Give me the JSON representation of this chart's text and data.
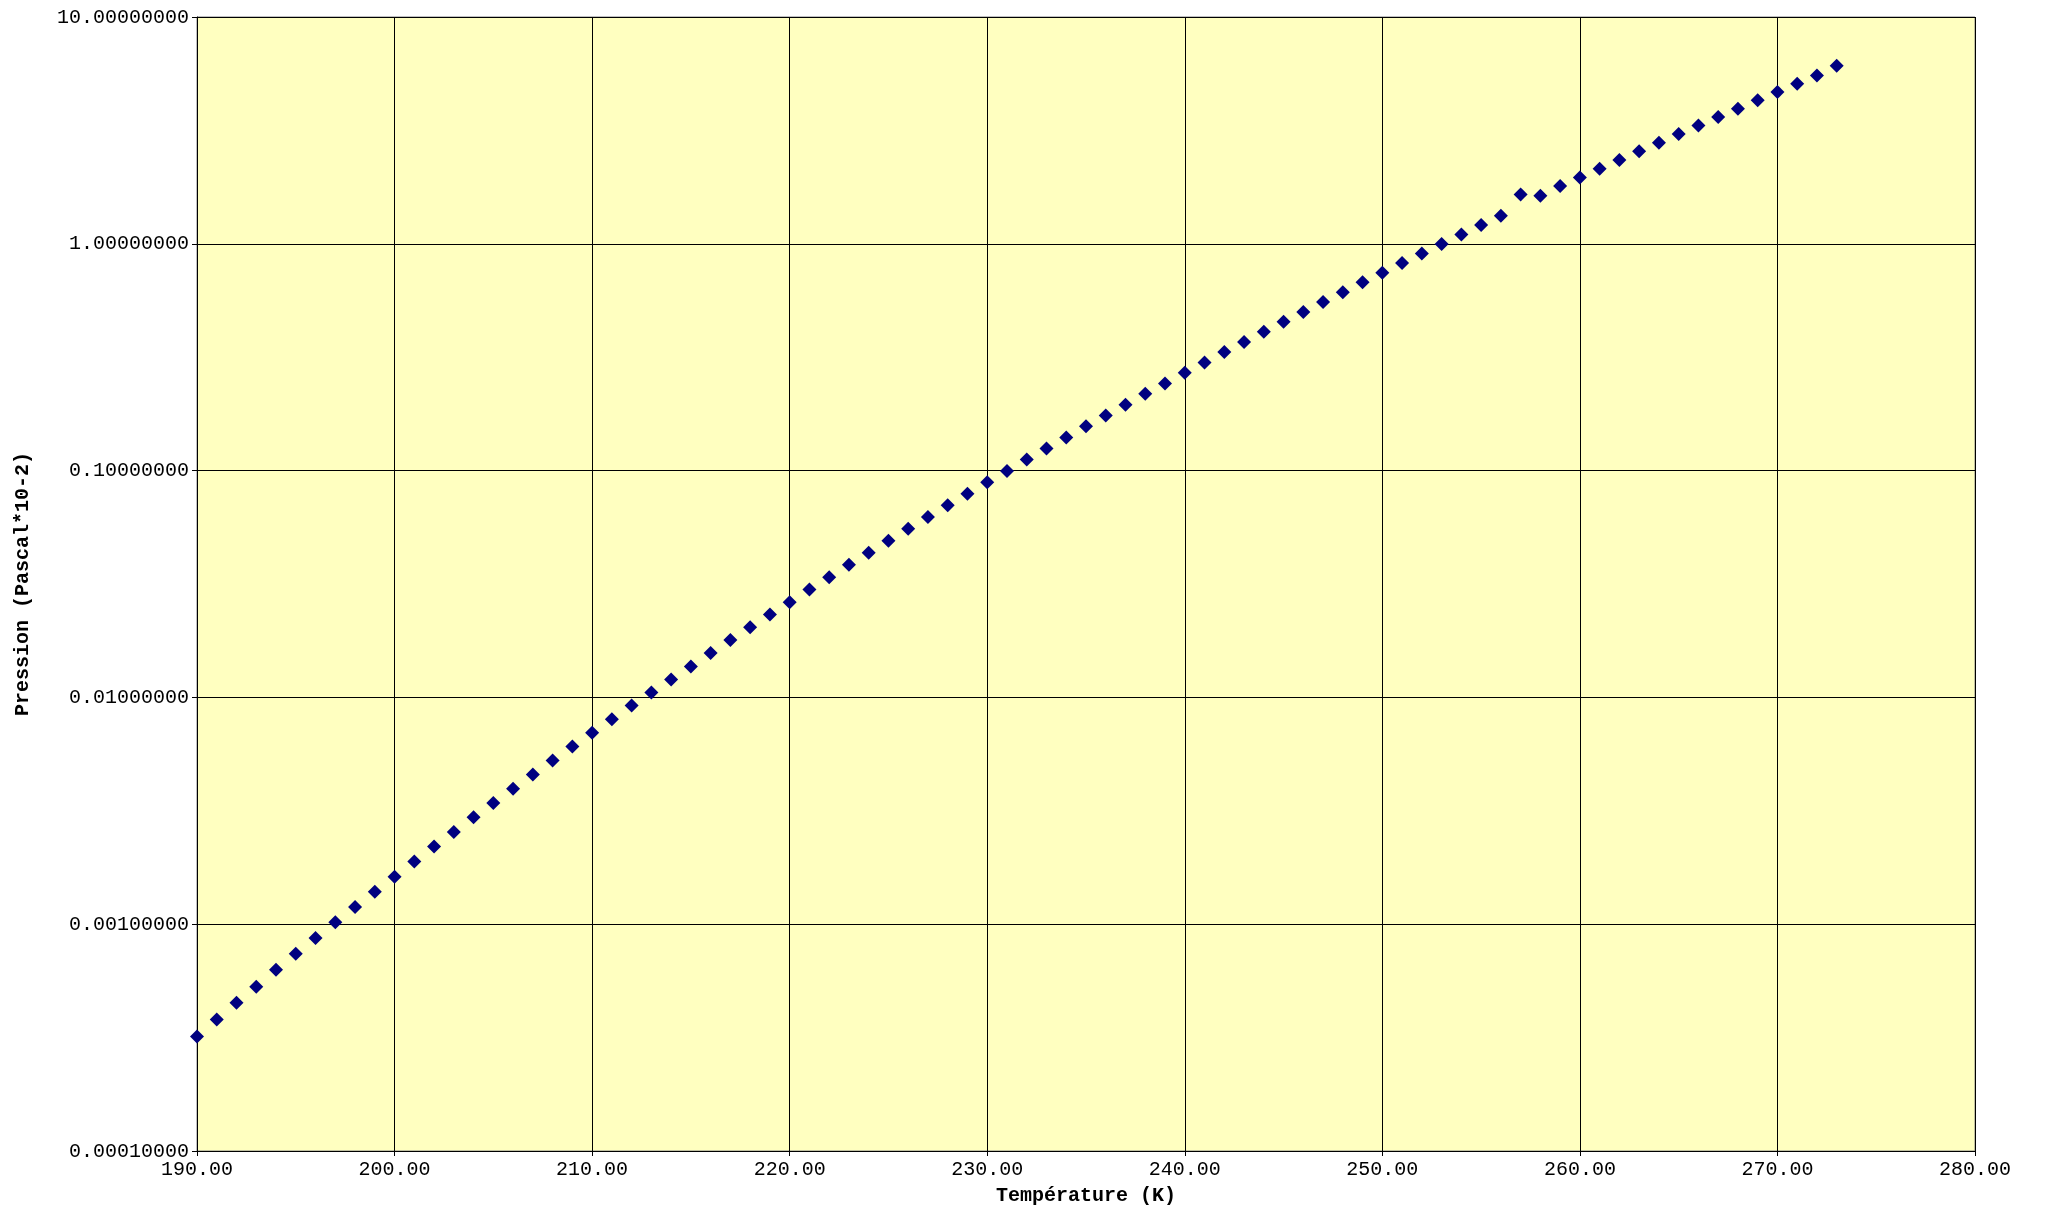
{
  "chart_data": {
    "type": "scatter",
    "xlabel": "Température (K)",
    "ylabel": "Pression (Pascal*10-2)",
    "log": "y",
    "grid": true,
    "marker": "diamond",
    "xlim": [
      190,
      280
    ],
    "ylim": [
      0.0001,
      10
    ],
    "xticks": [
      {
        "value": 190,
        "label": "190.00"
      },
      {
        "value": 200,
        "label": "200.00"
      },
      {
        "value": 210,
        "label": "210.00"
      },
      {
        "value": 220,
        "label": "220.00"
      },
      {
        "value": 230,
        "label": "230.00"
      },
      {
        "value": 240,
        "label": "240.00"
      },
      {
        "value": 250,
        "label": "250.00"
      },
      {
        "value": 260,
        "label": "260.00"
      },
      {
        "value": 270,
        "label": "270.00"
      },
      {
        "value": 280,
        "label": "280.00"
      }
    ],
    "yticks": [
      {
        "value": 0.0001,
        "label": "0.00010000"
      },
      {
        "value": 0.001,
        "label": "0.00100000"
      },
      {
        "value": 0.01,
        "label": "0.01000000"
      },
      {
        "value": 0.1,
        "label": "0.10000000"
      },
      {
        "value": 1,
        "label": "1.00000000"
      },
      {
        "value": 10,
        "label": "10.00000000"
      }
    ],
    "x": [
      190,
      191,
      192,
      193,
      194,
      195,
      196,
      197,
      198,
      199,
      200,
      201,
      202,
      203,
      204,
      205,
      206,
      207,
      208,
      209,
      210,
      211,
      212,
      213,
      214,
      215,
      216,
      217,
      218,
      219,
      220,
      221,
      222,
      223,
      224,
      225,
      226,
      227,
      228,
      229,
      230,
      231,
      232,
      233,
      234,
      235,
      236,
      237,
      238,
      239,
      240,
      241,
      242,
      243,
      244,
      245,
      246,
      247,
      248,
      249,
      250,
      251,
      252,
      253,
      254,
      255,
      256,
      257,
      258,
      259,
      260,
      261,
      262,
      263,
      264,
      265,
      266,
      267,
      268,
      269,
      270,
      271,
      272,
      273
    ],
    "series": [
      {
        "color": "#000080",
        "values": [
          0.00032,
          0.00038,
          0.00045,
          0.00053,
          0.00063,
          0.00074,
          0.00087,
          0.00102,
          0.00119,
          0.00139,
          0.00162,
          0.00189,
          0.0022,
          0.00255,
          0.00296,
          0.00342,
          0.00396,
          0.00457,
          0.00527,
          0.00607,
          0.00698,
          0.00802,
          0.0092,
          0.0105,
          0.012,
          0.0137,
          0.0157,
          0.0179,
          0.0204,
          0.0232,
          0.0263,
          0.0299,
          0.0339,
          0.0384,
          0.0434,
          0.0491,
          0.0554,
          0.0624,
          0.0703,
          0.079,
          0.0888,
          0.0997,
          0.112,
          0.125,
          0.14,
          0.157,
          0.175,
          0.195,
          0.218,
          0.242,
          0.27,
          0.3,
          0.333,
          0.369,
          0.409,
          0.453,
          0.501,
          0.554,
          0.612,
          0.676,
          0.746,
          0.822,
          0.906,
          0.997,
          1.1,
          1.21,
          1.33,
          1.65,
          1.63,
          1.8,
          1.96,
          2.14,
          2.34,
          2.56,
          2.79,
          3.05,
          3.32,
          3.62,
          3.94,
          4.29,
          4.67,
          5.08,
          5.52,
          6.1
        ]
      }
    ]
  }
}
